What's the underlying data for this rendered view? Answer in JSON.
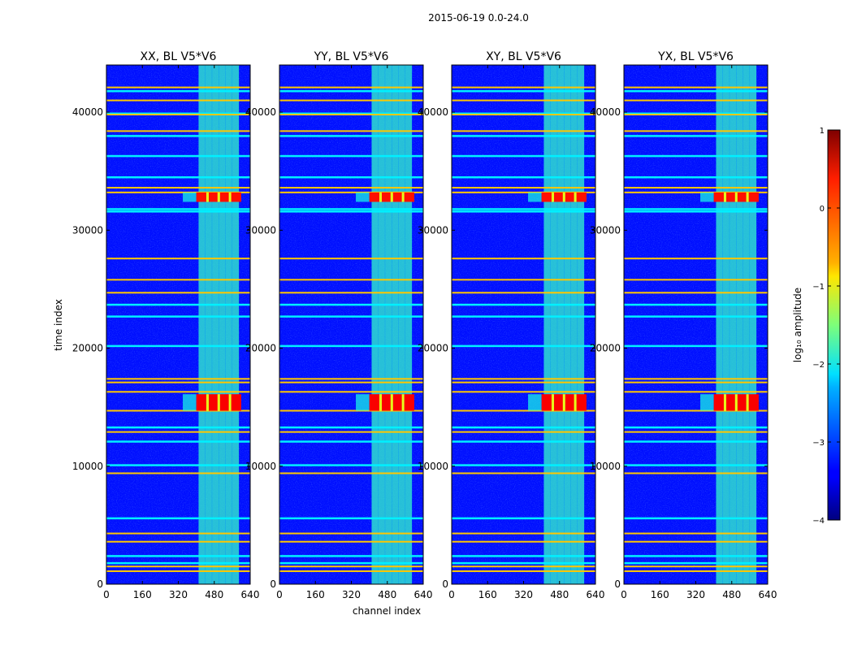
{
  "figure": {
    "suptitle": "2015-06-19 0.0-24.0"
  },
  "chart_data": {
    "type": "heatmap",
    "suptitle": "2015-06-19 0.0-24.0",
    "xlabel": "channel index",
    "ylabel": "time index",
    "xlim": [
      0,
      640
    ],
    "ylim": [
      0,
      44000
    ],
    "xticks": [
      0,
      160,
      320,
      480,
      640
    ],
    "yticks": [
      0,
      10000,
      20000,
      30000,
      40000
    ],
    "panels": [
      {
        "title": "XX, BL V5*V6"
      },
      {
        "title": "YY, BL V5*V6"
      },
      {
        "title": "XY, BL V5*V6"
      },
      {
        "title": "YX, BL V5*V6"
      }
    ],
    "colorbar": {
      "label": "log₁₀ amplitude",
      "colormap": "jet",
      "range": [
        -4,
        1
      ],
      "ticks": [
        1,
        0,
        -1,
        -2,
        -3,
        -4
      ],
      "tick_labels": [
        "1",
        "0",
        "−1",
        "−2",
        "−3",
        "−4"
      ]
    },
    "features": {
      "background_level": -3.3,
      "rfi_channel_band": [
        410,
        590
      ],
      "rfi_band_level": -2.2,
      "strong_bursts": [
        {
          "time": [
            32400,
            33200
          ],
          "channels": [
            400,
            600
          ],
          "level": 0.3
        },
        {
          "time": [
            14700,
            16100
          ],
          "channels": [
            400,
            600
          ],
          "level": 0.4
        }
      ],
      "flagged_rows": [
        1100,
        1500,
        3600,
        4300,
        9400,
        12900,
        14700,
        16300,
        17100,
        17400,
        24700,
        25800,
        27600,
        33200,
        33600,
        38400,
        39800,
        41000,
        42100
      ],
      "bright_rows": [
        1800,
        2400,
        5600,
        10100,
        12100,
        13300,
        20200,
        22700,
        23700,
        31600,
        31800,
        34500,
        36300,
        38000,
        39900,
        41800
      ]
    }
  }
}
